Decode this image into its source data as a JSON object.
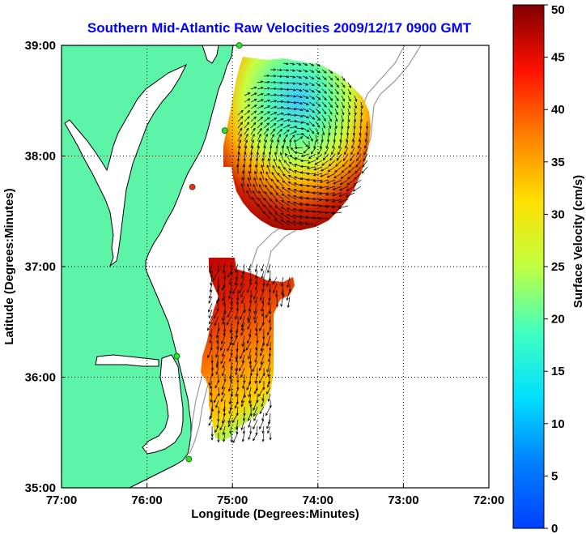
{
  "title": "Southern Mid-Atlantic Raw Velocities 2009/12/17 0900 GMT",
  "chart_data": {
    "type": "map",
    "xlabel": "Longitude (Degrees:Minutes)",
    "ylabel": "Latitude (Degrees:Minutes)",
    "x_range": [
      -77,
      -72
    ],
    "y_range": [
      35,
      39
    ],
    "x_ticks": [
      {
        "value": -77,
        "label": "77:00"
      },
      {
        "value": -76,
        "label": "76:00"
      },
      {
        "value": -75,
        "label": "75:00"
      },
      {
        "value": -74,
        "label": "74:00"
      },
      {
        "value": -73,
        "label": "73:00"
      },
      {
        "value": -72,
        "label": "72:00"
      }
    ],
    "y_ticks": [
      {
        "value": 35,
        "label": "35:00"
      },
      {
        "value": 36,
        "label": "36:00"
      },
      {
        "value": 37,
        "label": "37:00"
      },
      {
        "value": 38,
        "label": "38:00"
      },
      {
        "value": 39,
        "label": "39:00"
      }
    ],
    "grid": true,
    "colorbar": {
      "label": "Surface Velocity (cm/s)",
      "range": [
        0,
        50
      ],
      "ticks": [
        0,
        5,
        10,
        15,
        20,
        25,
        30,
        35,
        40,
        45,
        50
      ],
      "colormap": "jet"
    },
    "land_color": "#5cf5a8",
    "coast_color": "#000000",
    "isobath_color": "#999999",
    "sites": [
      {
        "lon": -74.92,
        "lat": 39.0,
        "status": "green"
      },
      {
        "lon": -75.09,
        "lat": 38.23,
        "status": "green"
      },
      {
        "lon": -75.47,
        "lat": 37.72,
        "status": "red"
      },
      {
        "lon": -75.65,
        "lat": 36.19,
        "status": "green"
      },
      {
        "lon": -75.51,
        "lat": 35.26,
        "status": "green"
      }
    ]
  }
}
